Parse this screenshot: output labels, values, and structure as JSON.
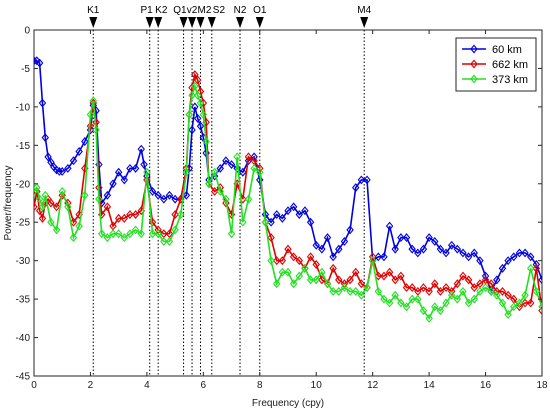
{
  "chart_data": {
    "type": "line",
    "title": "",
    "xlabel": "Frequency (cpy)",
    "ylabel": "Power/frequency",
    "xlim": [
      0,
      18
    ],
    "ylim": [
      -45,
      0
    ],
    "xticks": [
      "0",
      "2",
      "4",
      "6",
      "8",
      "10",
      "12",
      "14",
      "16",
      "18"
    ],
    "yticks": [
      "0",
      "-5",
      "-10",
      "-15",
      "-20",
      "-25",
      "-30",
      "-35",
      "-40",
      "-45"
    ],
    "grid": false,
    "legend_position": "top-right",
    "tidal_lines": [
      {
        "label": "K1",
        "x": 2.1
      },
      {
        "label": "P1",
        "x": 4.1
      },
      {
        "label": "K2",
        "x": 4.4
      },
      {
        "label": "Q1",
        "x": 5.3
      },
      {
        "label": "v2",
        "x": 5.6
      },
      {
        "label": "M2",
        "x": 5.9
      },
      {
        "label": "S2",
        "x": 6.3
      },
      {
        "label": "N2",
        "x": 7.3
      },
      {
        "label": "O1",
        "x": 8.0
      },
      {
        "label": "M4",
        "x": 11.7
      }
    ],
    "series": [
      {
        "name": "60 km",
        "color": "#0000e0",
        "x": [
          0.0,
          0.1,
          0.2,
          0.3,
          0.4,
          0.5,
          0.6,
          0.7,
          0.8,
          0.9,
          1.0,
          1.2,
          1.4,
          1.6,
          1.8,
          2.0,
          2.1,
          2.2,
          2.3,
          2.4,
          2.6,
          2.8,
          3.0,
          3.2,
          3.4,
          3.6,
          3.8,
          3.9,
          4.0,
          4.2,
          4.4,
          4.6,
          4.8,
          5.0,
          5.2,
          5.4,
          5.5,
          5.6,
          5.7,
          5.8,
          5.9,
          6.0,
          6.1,
          6.2,
          6.4,
          6.6,
          6.8,
          7.0,
          7.2,
          7.4,
          7.6,
          7.8,
          8.0,
          8.2,
          8.4,
          8.6,
          8.8,
          9.0,
          9.2,
          9.4,
          9.6,
          9.8,
          10.0,
          10.2,
          10.4,
          10.6,
          10.8,
          11.0,
          11.2,
          11.4,
          11.6,
          11.8,
          12.0,
          12.2,
          12.4,
          12.6,
          12.8,
          13.0,
          13.2,
          13.4,
          13.6,
          13.8,
          14.0,
          14.2,
          14.4,
          14.6,
          14.8,
          15.0,
          15.2,
          15.4,
          15.6,
          15.8,
          16.0,
          16.2,
          16.4,
          16.6,
          16.8,
          17.0,
          17.2,
          17.4,
          17.6,
          17.8,
          18.0
        ],
        "values": [
          -4,
          -4,
          -4.3,
          -9.5,
          -14,
          -16.5,
          -17.2,
          -17.8,
          -18.2,
          -18.4,
          -18.4,
          -18,
          -17,
          -15.8,
          -14.5,
          -13,
          -9.8,
          -10.5,
          -17.5,
          -22.5,
          -21.5,
          -20,
          -18.5,
          -19.5,
          -18,
          -18,
          -15.5,
          -17.5,
          -19,
          -21,
          -21.5,
          -22,
          -21.5,
          -22,
          -22,
          -21.5,
          -18,
          -13,
          -10,
          -11.5,
          -12.5,
          -14,
          -16,
          -19.5,
          -19,
          -18,
          -17,
          -17.5,
          -18,
          -18.5,
          -17,
          -16.5,
          -19.5,
          -24,
          -25,
          -24,
          -24.5,
          -23.5,
          -23,
          -24,
          -23.5,
          -25,
          -28,
          -28.5,
          -27,
          -29.5,
          -28.5,
          -27.5,
          -26,
          -20.5,
          -19.5,
          -19.5,
          -30,
          -29.5,
          -29.5,
          -25.5,
          -28.5,
          -27,
          -27,
          -28.5,
          -29,
          -28.5,
          -27,
          -27.5,
          -28.5,
          -29,
          -28,
          -28.5,
          -29,
          -29.5,
          -29,
          -30,
          -32,
          -34,
          -32.5,
          -31,
          -30,
          -29.5,
          -29,
          -29,
          -29.5,
          -30.5,
          -32.5
        ]
      },
      {
        "name": "662 km",
        "color": "#e00000",
        "x": [
          0.0,
          0.1,
          0.2,
          0.3,
          0.4,
          0.5,
          0.6,
          0.8,
          1.0,
          1.2,
          1.4,
          1.6,
          1.8,
          2.0,
          2.1,
          2.2,
          2.3,
          2.4,
          2.6,
          2.8,
          3.0,
          3.2,
          3.4,
          3.6,
          3.8,
          4.0,
          4.2,
          4.4,
          4.6,
          4.8,
          5.0,
          5.2,
          5.4,
          5.5,
          5.6,
          5.7,
          5.8,
          5.9,
          6.0,
          6.1,
          6.2,
          6.4,
          6.6,
          6.8,
          7.0,
          7.2,
          7.4,
          7.6,
          7.8,
          8.0,
          8.2,
          8.4,
          8.6,
          8.8,
          9.0,
          9.2,
          9.4,
          9.6,
          9.8,
          10.0,
          10.2,
          10.4,
          10.6,
          10.8,
          11.0,
          11.2,
          11.4,
          11.6,
          11.8,
          12.0,
          12.2,
          12.4,
          12.6,
          12.8,
          13.0,
          13.2,
          13.4,
          13.6,
          13.8,
          14.0,
          14.2,
          14.4,
          14.6,
          14.8,
          15.0,
          15.2,
          15.4,
          15.6,
          15.8,
          16.0,
          16.2,
          16.4,
          16.6,
          16.8,
          17.0,
          17.2,
          17.4,
          17.6,
          17.8,
          18.0
        ],
        "values": [
          -23,
          -21,
          -23.5,
          -24.5,
          -22.5,
          -22,
          -22.5,
          -23,
          -21.5,
          -22.5,
          -25,
          -24,
          -18,
          -12.5,
          -9.5,
          -12,
          -20.5,
          -24,
          -23,
          -25.5,
          -24.5,
          -24.5,
          -24,
          -24,
          -23.5,
          -19.5,
          -25,
          -26,
          -26.5,
          -26.5,
          -24,
          -22,
          -18,
          -11,
          -7.5,
          -5.8,
          -6.5,
          -8,
          -9.5,
          -12,
          -20,
          -21,
          -20.5,
          -22.5,
          -24,
          -20,
          -22,
          -16.5,
          -17,
          -18,
          -25,
          -27,
          -30,
          -30,
          -28.5,
          -29.5,
          -30,
          -31,
          -29.5,
          -30.5,
          -32.5,
          -33,
          -31,
          -32.5,
          -33,
          -32.5,
          -31.5,
          -33,
          -33.5,
          -29.5,
          -32,
          -32,
          -31.5,
          -32.5,
          -32,
          -33.5,
          -33.5,
          -34,
          -33.5,
          -34,
          -33,
          -34,
          -33.5,
          -34,
          -33,
          -32,
          -32.5,
          -33.5,
          -33,
          -32.5,
          -33,
          -34,
          -34,
          -34.5,
          -35,
          -36,
          -35.5,
          -35.5,
          -31,
          -36.5
        ]
      },
      {
        "name": "373 km",
        "color": "#22e022",
        "x": [
          0.0,
          0.1,
          0.2,
          0.3,
          0.4,
          0.6,
          0.8,
          1.0,
          1.2,
          1.4,
          1.6,
          1.8,
          2.0,
          2.1,
          2.2,
          2.3,
          2.4,
          2.6,
          2.8,
          3.0,
          3.2,
          3.4,
          3.6,
          3.8,
          4.0,
          4.2,
          4.4,
          4.6,
          4.8,
          5.0,
          5.2,
          5.4,
          5.5,
          5.6,
          5.7,
          5.8,
          5.9,
          6.0,
          6.1,
          6.2,
          6.4,
          6.6,
          6.8,
          7.0,
          7.2,
          7.4,
          7.6,
          7.8,
          8.0,
          8.2,
          8.4,
          8.6,
          8.8,
          9.0,
          9.2,
          9.4,
          9.6,
          9.8,
          10.0,
          10.2,
          10.4,
          10.6,
          10.8,
          11.0,
          11.2,
          11.4,
          11.6,
          11.8,
          12.0,
          12.2,
          12.4,
          12.6,
          12.8,
          13.0,
          13.2,
          13.4,
          13.6,
          13.8,
          14.0,
          14.2,
          14.4,
          14.6,
          14.8,
          15.0,
          15.2,
          15.4,
          15.6,
          15.8,
          16.0,
          16.2,
          16.4,
          16.6,
          16.8,
          17.0,
          17.2,
          17.4,
          17.6,
          17.8,
          18.0
        ],
        "values": [
          -21,
          -20.5,
          -22,
          -23,
          -21.5,
          -25,
          -26,
          -21,
          -23,
          -27,
          -25.5,
          -21.5,
          -11,
          -9.2,
          -13,
          -22,
          -26.5,
          -27,
          -26.5,
          -26.5,
          -27,
          -26.5,
          -26,
          -26.5,
          -18.5,
          -26.5,
          -26.5,
          -27.5,
          -27.5,
          -26,
          -24,
          -18.5,
          -11,
          -8.5,
          -7.3,
          -8.5,
          -9.5,
          -11,
          -14.5,
          -20,
          -18.5,
          -21,
          -22,
          -26.5,
          -16.5,
          -25,
          -22,
          -18,
          -18.5,
          -25,
          -30,
          -33,
          -31.5,
          -31.5,
          -33,
          -32,
          -31,
          -32.5,
          -32.5,
          -31.5,
          -33,
          -34,
          -34,
          -33.5,
          -34,
          -34,
          -34.5,
          -33.5,
          -30,
          -34,
          -35,
          -35.5,
          -34.5,
          -35.5,
          -36,
          -35,
          -35,
          -36.5,
          -37.5,
          -36,
          -36.5,
          -35.5,
          -34.5,
          -35,
          -34,
          -35.5,
          -35,
          -34,
          -33.5,
          -34,
          -34.5,
          -35.5,
          -37,
          -36,
          -35.5,
          -34.5,
          -31,
          -34,
          -36
        ]
      }
    ]
  }
}
